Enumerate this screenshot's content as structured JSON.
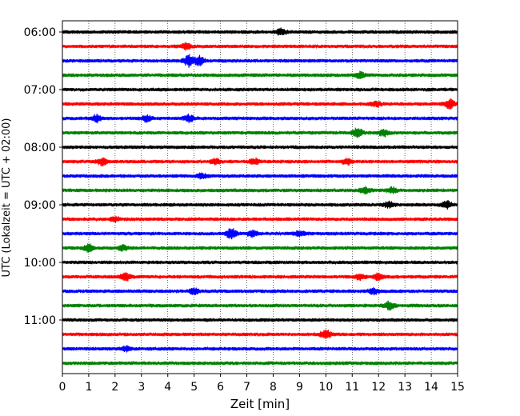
{
  "chart_data": {
    "type": "line",
    "title": "",
    "xlabel": "Zeit  [min]",
    "ylabel": "UTC (Lokalzeit = UTC + 02:00)",
    "xlim": [
      0,
      15
    ],
    "x_ticks": [
      "0",
      "1",
      "2",
      "3",
      "4",
      "5",
      "6",
      "7",
      "8",
      "9",
      "10",
      "11",
      "12",
      "13",
      "14",
      "15"
    ],
    "y_tick_labels": [
      "06:00",
      "07:00",
      "08:00",
      "09:00",
      "10:00",
      "11:00"
    ],
    "grid": "vertical dotted",
    "legend": "none",
    "colors": [
      "#000000",
      "#ff0000",
      "#0000ff",
      "#008000"
    ],
    "traces": [
      {
        "start": "06:00",
        "color": "#000000",
        "events": [
          {
            "t": 8.3,
            "amp": 0.6
          }
        ]
      },
      {
        "start": "06:15",
        "color": "#ff0000",
        "events": [
          {
            "t": 4.7,
            "amp": 0.5
          }
        ]
      },
      {
        "start": "06:30",
        "color": "#0000ff",
        "events": [
          {
            "t": 4.8,
            "amp": 1.0
          },
          {
            "t": 5.2,
            "amp": 0.8
          }
        ]
      },
      {
        "start": "06:45",
        "color": "#008000",
        "events": [
          {
            "t": 11.3,
            "amp": 0.5
          }
        ]
      },
      {
        "start": "07:00",
        "color": "#000000",
        "events": []
      },
      {
        "start": "07:15",
        "color": "#ff0000",
        "events": [
          {
            "t": 14.7,
            "amp": 0.8
          },
          {
            "t": 11.9,
            "amp": 0.4
          }
        ]
      },
      {
        "start": "07:30",
        "color": "#0000ff",
        "events": [
          {
            "t": 1.3,
            "amp": 0.6
          },
          {
            "t": 3.2,
            "amp": 0.5
          },
          {
            "t": 4.8,
            "amp": 0.6
          }
        ]
      },
      {
        "start": "07:45",
        "color": "#008000",
        "events": [
          {
            "t": 11.2,
            "amp": 0.8
          },
          {
            "t": 12.2,
            "amp": 0.6
          }
        ]
      },
      {
        "start": "08:00",
        "color": "#000000",
        "events": []
      },
      {
        "start": "08:15",
        "color": "#ff0000",
        "events": [
          {
            "t": 1.5,
            "amp": 0.6
          },
          {
            "t": 5.8,
            "amp": 0.5
          },
          {
            "t": 7.3,
            "amp": 0.5
          },
          {
            "t": 10.8,
            "amp": 0.5
          }
        ]
      },
      {
        "start": "08:30",
        "color": "#0000ff",
        "events": [
          {
            "t": 5.3,
            "amp": 0.4
          }
        ]
      },
      {
        "start": "08:45",
        "color": "#008000",
        "events": [
          {
            "t": 11.5,
            "amp": 0.5
          },
          {
            "t": 12.5,
            "amp": 0.5
          }
        ]
      },
      {
        "start": "09:00",
        "color": "#000000",
        "events": [
          {
            "t": 14.6,
            "amp": 0.6
          },
          {
            "t": 12.4,
            "amp": 0.5
          }
        ]
      },
      {
        "start": "09:15",
        "color": "#ff0000",
        "events": [
          {
            "t": 2.0,
            "amp": 0.4
          }
        ]
      },
      {
        "start": "09:30",
        "color": "#0000ff",
        "events": [
          {
            "t": 6.4,
            "amp": 0.9
          },
          {
            "t": 7.2,
            "amp": 0.5
          },
          {
            "t": 9.0,
            "amp": 0.5
          }
        ]
      },
      {
        "start": "09:45",
        "color": "#008000",
        "events": [
          {
            "t": 1.0,
            "amp": 0.6
          },
          {
            "t": 2.3,
            "amp": 0.5
          }
        ]
      },
      {
        "start": "10:00",
        "color": "#000000",
        "events": []
      },
      {
        "start": "10:15",
        "color": "#ff0000",
        "events": [
          {
            "t": 2.4,
            "amp": 0.7
          },
          {
            "t": 11.3,
            "amp": 0.5
          },
          {
            "t": 12.0,
            "amp": 0.6
          }
        ]
      },
      {
        "start": "10:30",
        "color": "#0000ff",
        "events": [
          {
            "t": 5.0,
            "amp": 0.5
          },
          {
            "t": 11.8,
            "amp": 0.5
          }
        ]
      },
      {
        "start": "10:45",
        "color": "#008000",
        "events": [
          {
            "t": 12.4,
            "amp": 0.7
          }
        ]
      },
      {
        "start": "11:00",
        "color": "#000000",
        "events": []
      },
      {
        "start": "11:15",
        "color": "#ff0000",
        "events": [
          {
            "t": 10.0,
            "amp": 0.8
          }
        ]
      },
      {
        "start": "11:30",
        "color": "#0000ff",
        "events": [
          {
            "t": 2.4,
            "amp": 0.4
          }
        ]
      },
      {
        "start": "11:45",
        "color": "#008000",
        "events": []
      }
    ]
  }
}
